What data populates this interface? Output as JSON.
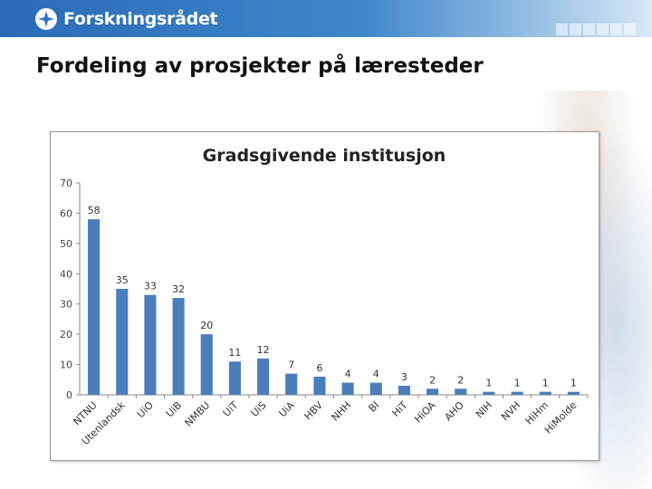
{
  "header": {
    "logo_text": "Forskningsrådet",
    "logo_icon": "forskningsradet-logo-icon",
    "background_color": "#2f75bf"
  },
  "slide": {
    "title": "Fordeling av prosjekter på læresteder"
  },
  "chart_data": {
    "type": "bar",
    "title": "Gradsgivende institusjon",
    "xlabel": "",
    "ylabel": "",
    "ylim": [
      0,
      70
    ],
    "yticks": [
      0,
      10,
      20,
      30,
      40,
      50,
      60,
      70
    ],
    "categories": [
      "NTNU",
      "Utenlandsk",
      "UiO",
      "UiB",
      "NMBU",
      "UiT",
      "UiS",
      "UiA",
      "HBV",
      "NHH",
      "BI",
      "HiT",
      "HiOA",
      "AHO",
      "NIH",
      "NVH",
      "HiHm",
      "HiMolde"
    ],
    "values": [
      58,
      35,
      33,
      32,
      20,
      11,
      12,
      7,
      6,
      4,
      4,
      3,
      2,
      2,
      1,
      1,
      1,
      1
    ],
    "bar_color": "#4a7ebb",
    "grid": false,
    "legend": "none"
  }
}
